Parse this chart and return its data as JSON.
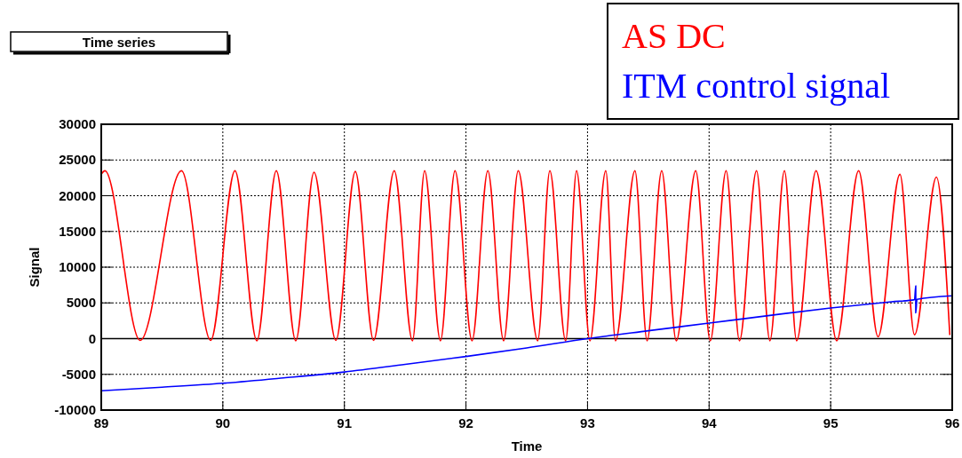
{
  "chart_data": {
    "type": "line",
    "title": "Time series",
    "xlabel": "Time",
    "ylabel": "Signal",
    "xlim": [
      89,
      96
    ],
    "xticks": [
      89,
      90,
      91,
      92,
      93,
      94,
      95,
      96
    ],
    "ylim": [
      -10000,
      30000
    ],
    "yticks": [
      -10000,
      -5000,
      0,
      5000,
      10000,
      15000,
      20000,
      25000,
      30000
    ],
    "grid": true,
    "legend": "top right",
    "series": [
      {
        "name": "AS DC",
        "color": "#ff0000",
        "x": [
          89.0,
          89.03,
          89.32,
          89.66,
          89.9,
          90.1,
          90.28,
          90.44,
          90.6,
          90.75,
          90.93,
          91.09,
          91.24,
          91.41,
          91.56,
          91.66,
          91.79,
          91.91,
          92.05,
          92.18,
          92.31,
          92.43,
          92.59,
          92.69,
          92.82,
          92.91,
          93.02,
          93.15,
          93.23,
          93.39,
          93.49,
          93.61,
          93.73,
          93.89,
          94.01,
          94.14,
          94.25,
          94.39,
          94.5,
          94.62,
          94.72,
          94.88,
          95.05,
          95.23,
          95.39,
          95.57,
          95.69,
          95.87,
          95.98
        ],
        "values": [
          23000,
          23500,
          -250,
          23500,
          -250,
          23500,
          -300,
          23500,
          -300,
          23300,
          -250,
          23400,
          -250,
          23500,
          -300,
          23500,
          -300,
          23500,
          -300,
          23500,
          -300,
          23500,
          -300,
          23500,
          -300,
          23500,
          -300,
          23500,
          -300,
          23500,
          -300,
          23500,
          -300,
          23500,
          -300,
          23500,
          -300,
          23500,
          -300,
          23500,
          -300,
          23500,
          -300,
          23500,
          250,
          23000,
          540,
          22600,
          500
        ]
      },
      {
        "name": "ITM control signal",
        "color": "#0000ff",
        "x": [
          89.0,
          89.5,
          90.0,
          90.5,
          91.0,
          91.5,
          92.0,
          92.5,
          93.0,
          93.5,
          94.0,
          94.5,
          95.0,
          95.5,
          95.69,
          95.7,
          95.7,
          95.71,
          96.0
        ],
        "values": [
          -7300,
          -6800,
          -6250,
          -5500,
          -4670,
          -3600,
          -2500,
          -1300,
          0,
          1100,
          2170,
          3250,
          4280,
          5150,
          5450,
          7400,
          3600,
          5500,
          6000
        ]
      }
    ]
  }
}
